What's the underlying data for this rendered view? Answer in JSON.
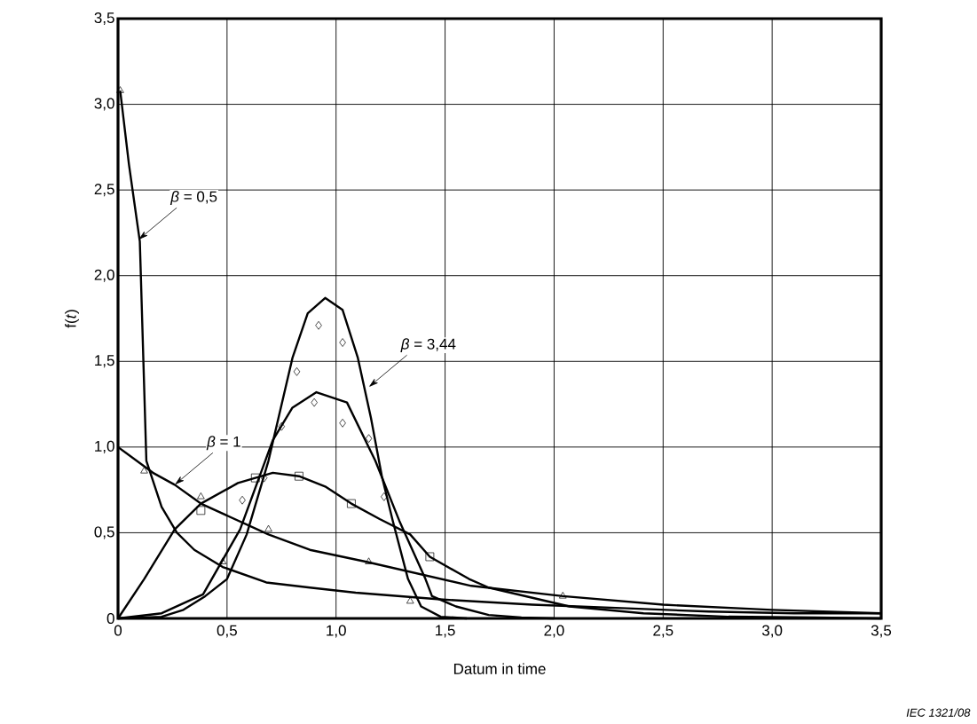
{
  "chart_data": {
    "type": "line",
    "xlabel": "Datum in time",
    "ylabel": "f(*t*)",
    "xlim": [
      0,
      3.5
    ],
    "ylim": [
      0,
      3.5
    ],
    "xticks": [
      0,
      {
        "value": 0.5,
        "label": "0,5"
      },
      {
        "value": 1.0,
        "label": "1,0"
      },
      {
        "value": 1.5,
        "label": "1,5"
      },
      {
        "value": 2.0,
        "label": "2,0"
      },
      {
        "value": 2.5,
        "label": "2,5"
      },
      {
        "value": 3.0,
        "label": "3,0"
      },
      {
        "value": 3.5,
        "label": "3,5"
      }
    ],
    "yticks": [
      0,
      {
        "value": 0.5,
        "label": "0,5"
      },
      {
        "value": 1.0,
        "label": "1,0"
      },
      {
        "value": 1.5,
        "label": "1,5"
      },
      {
        "value": 2.0,
        "label": "2,0"
      },
      {
        "value": 2.5,
        "label": "2,5"
      },
      {
        "value": 3.0,
        "label": "3,0"
      },
      {
        "value": 3.5,
        "label": "3,5"
      }
    ],
    "grid": true,
    "series": [
      {
        "color": "#000000",
        "x": [
          0.01,
          0.05,
          0.1,
          0.13,
          0.2,
          0.27,
          0.35,
          0.48,
          0.68,
          0.88,
          1.09,
          1.49,
          1.9,
          2.31,
          2.71,
          3.1,
          3.5
        ],
        "values": [
          3.08,
          2.65,
          2.2,
          0.92,
          0.65,
          0.5,
          0.4,
          0.3,
          0.21,
          0.18,
          0.15,
          0.11,
          0.08,
          0.06,
          0.04,
          0.03,
          0.03
        ]
      },
      {
        "color": "#000000",
        "x": [
          0,
          0.16,
          0.26,
          0.38,
          0.69,
          0.88,
          1.14,
          1.62,
          2.04,
          2.5,
          3.0,
          3.5
        ],
        "values": [
          1.0,
          0.85,
          0.78,
          0.67,
          0.49,
          0.4,
          0.33,
          0.19,
          0.13,
          0.08,
          0.05,
          0.03
        ]
      },
      {
        "color": "#000000",
        "x": [
          0,
          0.12,
          0.26,
          0.38,
          0.55,
          0.71,
          0.83,
          0.95,
          1.07,
          1.2,
          1.34,
          1.43,
          1.61,
          1.7,
          2.07,
          2.41,
          2.8,
          3.2,
          3.5
        ],
        "values": [
          0,
          0.23,
          0.52,
          0.67,
          0.79,
          0.85,
          0.83,
          0.77,
          0.67,
          0.58,
          0.49,
          0.36,
          0.23,
          0.18,
          0.07,
          0.03,
          0.01,
          0.005,
          0
        ]
      },
      {
        "color": "#000000",
        "x": [
          0,
          0.2,
          0.39,
          0.56,
          0.71,
          0.8,
          0.91,
          1.05,
          1.18,
          1.29,
          1.41,
          1.44,
          1.55,
          1.7,
          1.85,
          2.0
        ],
        "values": [
          0,
          0.03,
          0.14,
          0.52,
          1.04,
          1.23,
          1.32,
          1.26,
          0.92,
          0.57,
          0.23,
          0.13,
          0.07,
          0.02,
          0.005,
          0
        ]
      },
      {
        "color": "#000000",
        "x": [
          0,
          0.2,
          0.3,
          0.4,
          0.5,
          0.59,
          0.69,
          0.8,
          0.87,
          0.95,
          1.03,
          1.1,
          1.16,
          1.21,
          1.26,
          1.33,
          1.39,
          1.48,
          1.6
        ],
        "values": [
          0,
          0.01,
          0.05,
          0.13,
          0.23,
          0.49,
          0.92,
          1.52,
          1.78,
          1.87,
          1.8,
          1.52,
          1.17,
          0.83,
          0.57,
          0.23,
          0.07,
          0.01,
          0
        ]
      },
      {
        "type": "scatter",
        "marker": "diamond",
        "color": "#000000",
        "x": [
          0.57,
          0.67,
          0.75,
          0.82,
          0.9,
          0.92,
          1.03,
          1.03,
          1.15,
          1.22
        ],
        "values": [
          0.69,
          0.82,
          1.12,
          1.44,
          1.26,
          1.71,
          1.61,
          1.14,
          1.05,
          0.71
        ]
      },
      {
        "type": "scatter",
        "marker": "square",
        "color": "#000000",
        "x": [
          0.38,
          0.63,
          0.83,
          1.07,
          1.43
        ],
        "values": [
          0.63,
          0.82,
          0.83,
          0.67,
          0.36
        ]
      },
      {
        "type": "scatter",
        "marker": "triangle",
        "color": "#000000",
        "x": [
          0.01,
          0.12,
          0.38,
          0.48,
          0.69,
          1.15,
          1.34,
          2.04
        ],
        "values": [
          3.08,
          0.86,
          0.71,
          0.33,
          0.52,
          0.33,
          0.1,
          0.13
        ]
      }
    ],
    "annotations": [
      {
        "text": "*β* = 0,5",
        "x": 0.094,
        "y": 2.21
      },
      {
        "text": "*β* = 1",
        "x": 0.26,
        "y": 0.78
      },
      {
        "text": "*β* = 3,44",
        "x": 1.15,
        "y": 1.35
      },
      "IEC   1321/08"
    ]
  }
}
